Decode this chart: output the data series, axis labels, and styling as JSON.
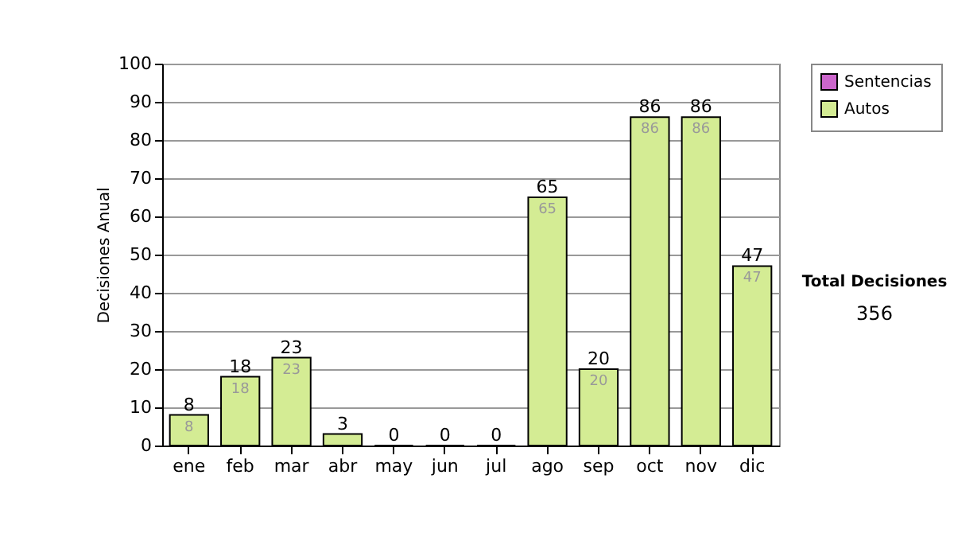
{
  "chart_data": {
    "type": "bar",
    "ylabel": "Decisiones Anual",
    "categories": [
      "ene",
      "feb",
      "mar",
      "abr",
      "may",
      "jun",
      "jul",
      "ago",
      "sep",
      "oct",
      "nov",
      "dic"
    ],
    "stacked": true,
    "series": [
      {
        "name": "Sentencias",
        "color": "#cc66cc",
        "values": [
          null,
          null,
          null,
          null,
          null,
          null,
          null,
          null,
          null,
          null,
          null,
          null
        ]
      },
      {
        "name": "Autos",
        "color": "#d4ec94",
        "values": [
          8,
          18,
          23,
          3,
          0,
          0,
          0,
          65,
          20,
          86,
          86,
          47
        ],
        "value_labels": [
          "8",
          "18",
          "23",
          null,
          null,
          null,
          null,
          "65",
          "20",
          "86",
          "86",
          "47"
        ]
      }
    ],
    "totals": [
      "8",
      "18",
      "23",
      "3",
      "0",
      "0",
      "0",
      "65",
      "20",
      "86",
      "86",
      "47"
    ],
    "ylim": [
      0,
      100
    ],
    "yticks": [
      0,
      10,
      20,
      30,
      40,
      50,
      60,
      70,
      80,
      90,
      100
    ],
    "grid": "y",
    "legend": "right",
    "annotations": [
      "Total Decisiones",
      "356"
    ]
  }
}
